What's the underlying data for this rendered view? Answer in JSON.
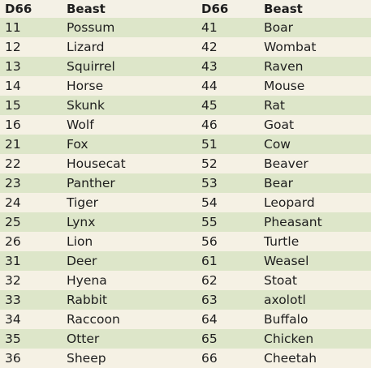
{
  "headers": {
    "d66_left": "D66",
    "beast_left": "Beast",
    "d66_right": "D66",
    "beast_right": "Beast"
  },
  "rows": [
    {
      "d1": "11",
      "b1": "Possum",
      "d2": "41",
      "b2": "Boar"
    },
    {
      "d1": "12",
      "b1": "Lizard",
      "d2": "42",
      "b2": "Wombat"
    },
    {
      "d1": "13",
      "b1": "Squirrel",
      "d2": "43",
      "b2": "Raven"
    },
    {
      "d1": "14",
      "b1": "Horse",
      "d2": "44",
      "b2": "Mouse"
    },
    {
      "d1": "15",
      "b1": "Skunk",
      "d2": "45",
      "b2": "Rat"
    },
    {
      "d1": "16",
      "b1": "Wolf",
      "d2": "46",
      "b2": "Goat"
    },
    {
      "d1": "21",
      "b1": "Fox",
      "d2": "51",
      "b2": "Cow"
    },
    {
      "d1": "22",
      "b1": "Housecat",
      "d2": "52",
      "b2": "Beaver"
    },
    {
      "d1": "23",
      "b1": "Panther",
      "d2": "53",
      "b2": "Bear"
    },
    {
      "d1": "24",
      "b1": "Tiger",
      "d2": "54",
      "b2": "Leopard"
    },
    {
      "d1": "25",
      "b1": "Lynx",
      "d2": "55",
      "b2": "Pheasant"
    },
    {
      "d1": "26",
      "b1": "Lion",
      "d2": "56",
      "b2": "Turtle"
    },
    {
      "d1": "31",
      "b1": "Deer",
      "d2": "61",
      "b2": "Weasel"
    },
    {
      "d1": "32",
      "b1": "Hyena",
      "d2": "62",
      "b2": "Stoat"
    },
    {
      "d1": "33",
      "b1": "Rabbit",
      "d2": "63",
      "b2": "axolotl"
    },
    {
      "d1": "34",
      "b1": "Raccoon",
      "d2": "64",
      "b2": "Buffalo"
    },
    {
      "d1": "35",
      "b1": "Otter",
      "d2": "65",
      "b2": "Chicken"
    },
    {
      "d1": "36",
      "b1": "Sheep",
      "d2": "66",
      "b2": "Cheetah"
    }
  ],
  "colors": {
    "background": "#f4f1e6",
    "stripe_green": "#dde6c9",
    "stripe_cream": "#f5f1e4",
    "text": "#1e1e1e"
  }
}
